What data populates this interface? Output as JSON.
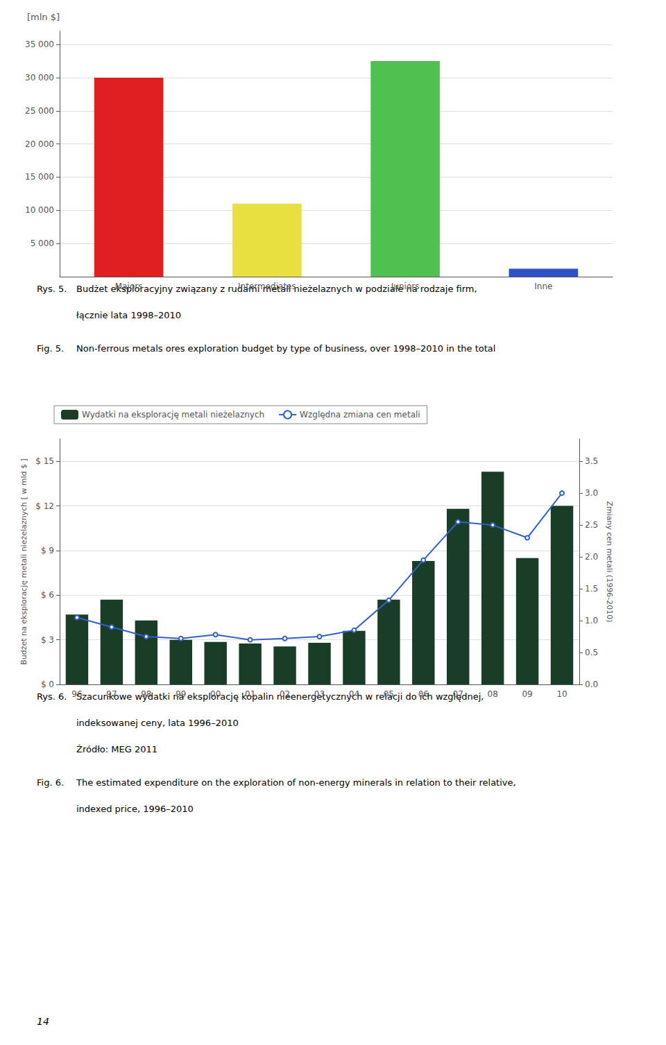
{
  "chart_data": [
    {
      "type": "bar",
      "categories": [
        "Majors",
        "Intermediates",
        "Juniors",
        "Inne"
      ],
      "values": [
        30000,
        11000,
        32500,
        1200
      ],
      "colors": [
        "#e02020",
        "#e8e040",
        "#50c050",
        "#3050c8"
      ],
      "ylabel": "[mln $]",
      "ylim": [
        0,
        37000
      ],
      "yticks": [
        {
          "value": 5000,
          "label": "5 000"
        },
        {
          "value": 10000,
          "label": "10 000"
        },
        {
          "value": 15000,
          "label": "15 000"
        },
        {
          "value": 20000,
          "label": "20 000"
        },
        {
          "value": 25000,
          "label": "25 000"
        },
        {
          "value": 30000,
          "label": "30 000"
        },
        {
          "value": 35000,
          "label": "35 000"
        }
      ],
      "grid": true,
      "annotations": [
        [
          "Rys. 5.",
          "Budżet eksploracyjny związany z rudami metali nieżelaznych w podziale na rodzaje firm,",
          "łącznie lata 1998–2010"
        ],
        [
          "Fig. 5.",
          "Non-ferrous metals ores exploration budget by type of business, over 1998–2010 in the total"
        ]
      ]
    },
    {
      "type": "bar",
      "categories": [
        "96",
        "97",
        "98",
        "99",
        "00",
        "01",
        "02",
        "03",
        "04",
        "05",
        "06",
        "07",
        "08",
        "09",
        "10"
      ],
      "series": [
        {
          "name": "Wydatki na eksplorację metali nieżelaznych",
          "type": "bar",
          "color": "#1a3d28",
          "values": [
            4.7,
            5.7,
            4.3,
            3.0,
            2.85,
            2.75,
            2.55,
            2.8,
            3.6,
            5.7,
            8.3,
            11.8,
            14.3,
            8.5,
            12.0
          ]
        },
        {
          "name": "Względna zmiana cen metali",
          "type": "line",
          "color": "#3060c8",
          "axis": "y2",
          "values": [
            1.05,
            0.9,
            0.75,
            0.72,
            0.78,
            0.7,
            0.72,
            0.75,
            0.85,
            1.32,
            1.95,
            2.55,
            2.5,
            2.3,
            3.0
          ]
        }
      ],
      "ylabel": "Budżet na eksplorację metali nieżelaznych [ w mld $ ]",
      "y2label": "Zmiany cen metali (1996-2010)",
      "ylim": [
        0,
        16.5
      ],
      "yticks": [
        {
          "value": 0,
          "label": "$ 0"
        },
        {
          "value": 3,
          "label": "$ 3"
        },
        {
          "value": 6,
          "label": "$ 6"
        },
        {
          "value": 9,
          "label": "$ 9"
        },
        {
          "value": 12,
          "label": "$ 12"
        },
        {
          "value": 15,
          "label": "$ 15"
        }
      ],
      "y2lim": [
        0.0,
        3.85
      ],
      "y2ticks": [
        {
          "value": 0,
          "label": "0.0"
        },
        0.5,
        {
          "value": 1,
          "label": "1.0"
        },
        1.5,
        {
          "value": 2,
          "label": "2.0"
        },
        2.5,
        {
          "value": 3,
          "label": "3.0"
        },
        3.5
      ],
      "grid": true,
      "legend": "upper left",
      "annotations": [
        [
          "Rys. 6.",
          "Szacunkowe wydatki na eksplorację kopalin nieenergetycznych w relacji do ich względnej,",
          "indeksowanej ceny, lata 1996–2010",
          "Źródło: MEG 2011"
        ],
        [
          "Fig. 6.",
          "The estimated expenditure on the exploration of non-energy minerals in relation to their relative,",
          "indexed price, 1996–2010"
        ]
      ]
    }
  ],
  "annotations": [
    "14"
  ]
}
